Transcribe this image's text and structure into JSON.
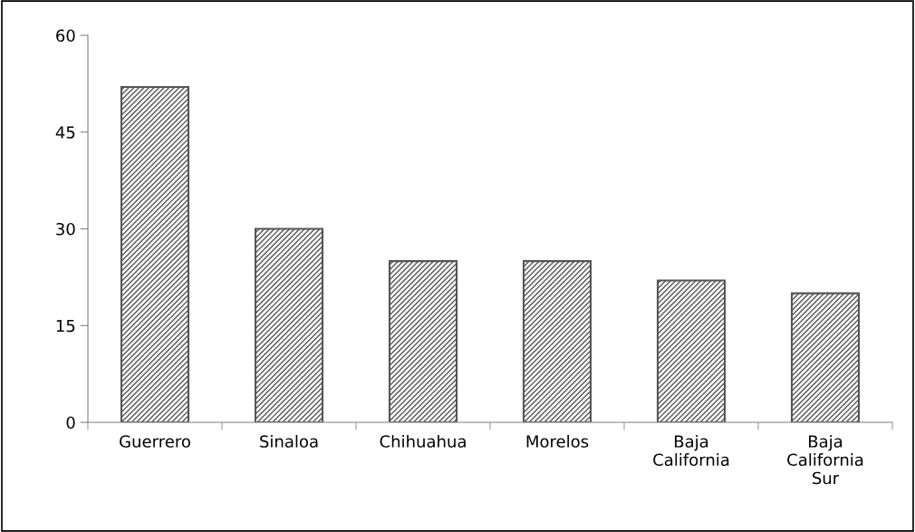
{
  "chart_data": {
    "type": "bar",
    "categories": [
      "Guerrero",
      "Sinaloa",
      "Chihuahua",
      "Morelos",
      "Baja\nCalifornia",
      "Baja\nCalifornia\nSur"
    ],
    "values": [
      52,
      30,
      25,
      25,
      22,
      20
    ],
    "color": "#555555",
    "ylim": [
      0,
      60
    ],
    "yticks": [
      0,
      15,
      30,
      45,
      60
    ],
    "grid": false,
    "legend": false
  }
}
